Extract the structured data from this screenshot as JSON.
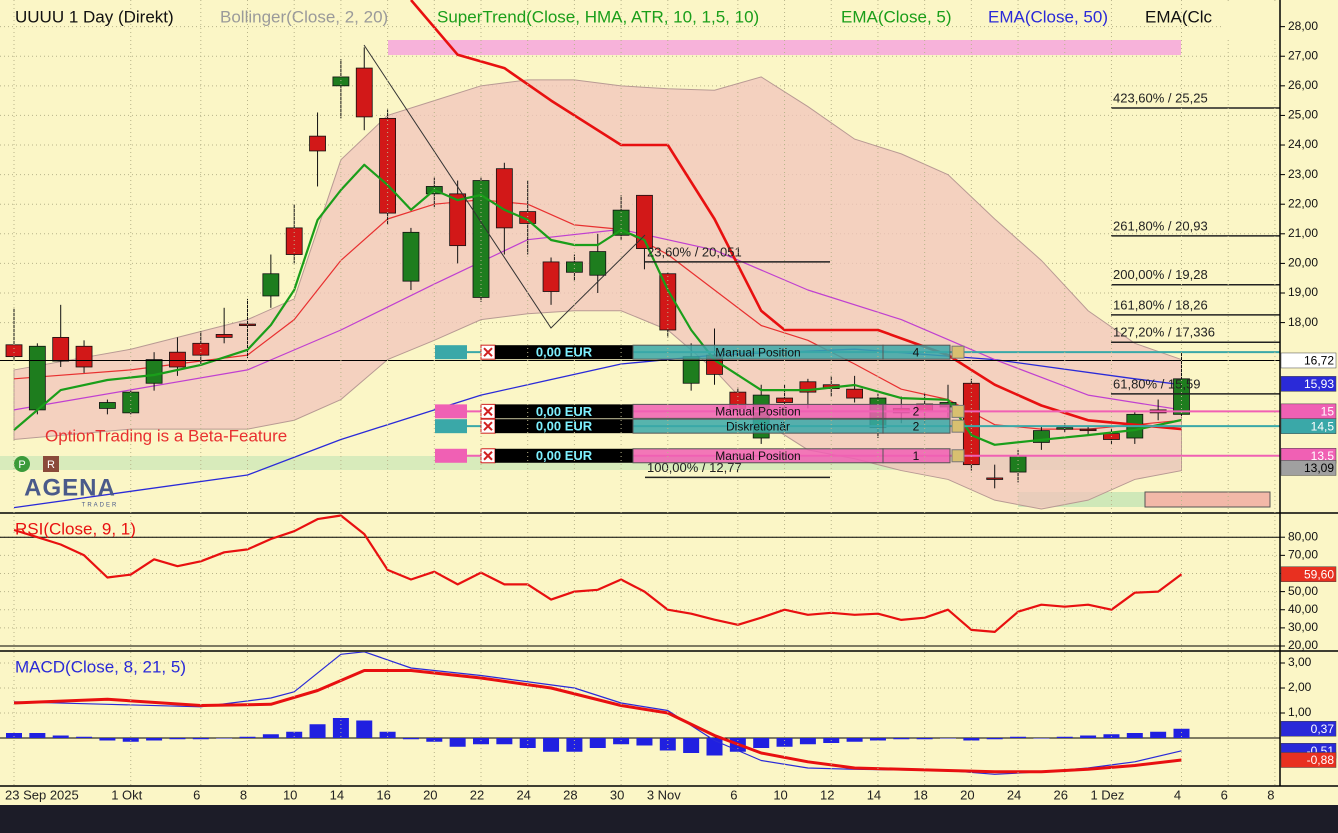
{
  "header": {
    "symbol": "UUUU 1 Day (Direkt)",
    "indicators": [
      {
        "label": "Bollinger(Close, 2, 20)",
        "color": "#9a9a9a"
      },
      {
        "label": "SuperTrend(Close, HMA, ATR, 10, 1,5, 10)",
        "color": "#1a9e1a"
      },
      {
        "label": "EMA(Close, 5)",
        "color": "#1a9e1a"
      },
      {
        "label": "EMA(Close, 50)",
        "color": "#2a2ad8"
      },
      {
        "label": "EMA(Clc",
        "color": "#111111"
      }
    ]
  },
  "beta_notice": "OptionTrading is a Beta-Feature",
  "logo": {
    "name": "AGENA",
    "sub": "TRADER"
  },
  "buttons": [
    "P",
    "R"
  ],
  "x_axis": {
    "labels": [
      "23 Sep 2025",
      null,
      null,
      null,
      null,
      "1 Okt",
      null,
      null,
      "6",
      null,
      "8",
      null,
      "10",
      null,
      "14",
      null,
      "16",
      null,
      "20",
      null,
      "22",
      null,
      "24",
      null,
      "28",
      null,
      "30",
      null,
      "3 Nov",
      null,
      null,
      "6",
      null,
      "10",
      null,
      "12",
      null,
      "14",
      null,
      "18",
      null,
      "20",
      null,
      "24",
      null,
      "26",
      null,
      "1 Dez",
      null,
      null,
      "4",
      null,
      "6",
      null,
      "8"
    ]
  },
  "price": {
    "ylim": [
      11.6,
      28.9
    ],
    "yticks": [
      {
        "value": 18,
        "label": "18,00"
      },
      {
        "value": 19,
        "label": "19,00"
      },
      {
        "value": 20,
        "label": "20,00"
      },
      {
        "value": 21,
        "label": "21,00"
      },
      {
        "value": 22,
        "label": "22,00"
      },
      {
        "value": 23,
        "label": "23,00"
      },
      {
        "value": 24,
        "label": "24,00"
      },
      {
        "value": 25,
        "label": "25,00"
      },
      {
        "value": 26,
        "label": "26,00"
      },
      {
        "value": 27,
        "label": "27,00"
      },
      {
        "value": 28,
        "label": "28,00"
      }
    ],
    "up_color": "#1e7d1e",
    "down_color": "#d21818",
    "candles": [
      {
        "o": 17.25,
        "h": 18.5,
        "l": 16.75,
        "c": 16.85
      },
      {
        "o": 15.05,
        "h": 17.3,
        "l": 14.9,
        "c": 17.2
      },
      {
        "o": 17.5,
        "h": 18.6,
        "l": 16.5,
        "c": 16.7
      },
      {
        "o": 17.2,
        "h": 17.4,
        "l": 16.3,
        "c": 16.5
      },
      {
        "o": 15.1,
        "h": 15.4,
        "l": 14.9,
        "c": 15.3
      },
      {
        "o": 14.95,
        "h": 15.7,
        "l": 14.9,
        "c": 15.65
      },
      {
        "o": 15.95,
        "h": 17.0,
        "l": 15.7,
        "c": 16.75
      },
      {
        "o": 17.0,
        "h": 17.5,
        "l": 16.2,
        "c": 16.5
      },
      {
        "o": 17.3,
        "h": 17.7,
        "l": 16.6,
        "c": 16.9
      },
      {
        "o": 17.6,
        "h": 18.5,
        "l": 17.3,
        "c": 17.5
      },
      {
        "o": 17.95,
        "h": 18.8,
        "l": 16.8,
        "c": 17.9
      },
      {
        "o": 18.9,
        "h": 20.3,
        "l": 18.5,
        "c": 19.65
      },
      {
        "o": 21.2,
        "h": 22.0,
        "l": 20.0,
        "c": 20.3
      },
      {
        "o": 24.3,
        "h": 25.1,
        "l": 22.6,
        "c": 23.8
      },
      {
        "o": 26.0,
        "h": 26.9,
        "l": 24.9,
        "c": 26.3
      },
      {
        "o": 26.6,
        "h": 27.3,
        "l": 24.5,
        "c": 24.95
      },
      {
        "o": 24.9,
        "h": 25.2,
        "l": 21.3,
        "c": 21.7
      },
      {
        "o": 19.4,
        "h": 21.2,
        "l": 19.1,
        "c": 21.05
      },
      {
        "o": 22.35,
        "h": 22.9,
        "l": 21.9,
        "c": 22.6
      },
      {
        "o": 22.35,
        "h": 22.8,
        "l": 20.0,
        "c": 20.6
      },
      {
        "o": 18.85,
        "h": 22.9,
        "l": 18.7,
        "c": 22.8
      },
      {
        "o": 23.2,
        "h": 23.4,
        "l": 20.3,
        "c": 21.2
      },
      {
        "o": 21.75,
        "h": 22.8,
        "l": 20.3,
        "c": 21.35
      },
      {
        "o": 20.05,
        "h": 20.2,
        "l": 18.6,
        "c": 19.05
      },
      {
        "o": 19.7,
        "h": 20.3,
        "l": 19.4,
        "c": 20.05
      },
      {
        "o": 19.6,
        "h": 21.0,
        "l": 19.0,
        "c": 20.4
      },
      {
        "o": 20.95,
        "h": 22.3,
        "l": 20.8,
        "c": 21.8
      },
      {
        "o": 22.3,
        "h": 22.3,
        "l": 19.8,
        "c": 20.5
      },
      {
        "o": 19.65,
        "h": 19.7,
        "l": 17.5,
        "c": 17.75
      },
      {
        "o": 15.95,
        "h": 17.3,
        "l": 15.7,
        "c": 16.85
      },
      {
        "o": 16.9,
        "h": 17.8,
        "l": 15.9,
        "c": 16.25
      },
      {
        "o": 15.65,
        "h": 15.8,
        "l": 14.8,
        "c": 15.1
      },
      {
        "o": 14.1,
        "h": 15.9,
        "l": 13.9,
        "c": 15.55
      },
      {
        "o": 15.45,
        "h": 15.9,
        "l": 15.1,
        "c": 15.3
      },
      {
        "o": 16.0,
        "h": 16.1,
        "l": 15.1,
        "c": 15.65
      },
      {
        "o": 15.9,
        "h": 16.2,
        "l": 15.5,
        "c": 15.77
      },
      {
        "o": 15.75,
        "h": 16.2,
        "l": 15.3,
        "c": 15.45
      },
      {
        "o": 14.45,
        "h": 15.6,
        "l": 14.1,
        "c": 15.45
      },
      {
        "o": 15.1,
        "h": 15.5,
        "l": 14.6,
        "c": 14.95
      },
      {
        "o": 15.25,
        "h": 15.6,
        "l": 14.6,
        "c": 15.0
      },
      {
        "o": 15.15,
        "h": 15.9,
        "l": 14.8,
        "c": 15.3
      },
      {
        "o": 15.95,
        "h": 16.1,
        "l": 13.0,
        "c": 13.2
      },
      {
        "o": 12.75,
        "h": 13.2,
        "l": 12.4,
        "c": 12.7
      },
      {
        "o": 12.95,
        "h": 13.7,
        "l": 12.6,
        "c": 13.5
      },
      {
        "o": 13.95,
        "h": 14.5,
        "l": 13.7,
        "c": 14.35
      },
      {
        "o": 14.45,
        "h": 14.6,
        "l": 14.3,
        "c": 14.45
      },
      {
        "o": 14.4,
        "h": 14.5,
        "l": 14.2,
        "c": 14.35
      },
      {
        "o": 14.25,
        "h": 14.4,
        "l": 13.9,
        "c": 14.05
      },
      {
        "o": 14.1,
        "h": 15.0,
        "l": 13.9,
        "c": 14.9
      },
      {
        "o": 15.05,
        "h": 15.4,
        "l": 14.7,
        "c": 14.95
      },
      {
        "o": 14.9,
        "h": 17.0,
        "l": 14.8,
        "c": 16.1
      }
    ],
    "band": {
      "color": "#f2c4bc",
      "edge": "#b89a94",
      "x": [
        0,
        5,
        10,
        12,
        14,
        16,
        18,
        20,
        22,
        24,
        26,
        28,
        30,
        32,
        34,
        36,
        38,
        40,
        42,
        44,
        46,
        48,
        50
      ],
      "upper": [
        16.4,
        17.1,
        18.1,
        18.8,
        23.5,
        25.0,
        25.5,
        26.0,
        26.2,
        26.2,
        26.0,
        25.9,
        25.85,
        26.3,
        25.3,
        24.2,
        23.7,
        23.0,
        21.5,
        20.1,
        18.4,
        17.3,
        16.75
      ],
      "lower": [
        14.05,
        14.4,
        14.4,
        14.7,
        15.4,
        16.75,
        17.4,
        18.1,
        18.3,
        18.4,
        18.4,
        17.75,
        16.4,
        14.7,
        13.7,
        13.4,
        13.0,
        12.7,
        12.0,
        11.7,
        12.0,
        12.7,
        13.0
      ]
    },
    "lines": [
      {
        "color": "#2a2ad8",
        "width": 1.3,
        "x": [
          0,
          10,
          14,
          20,
          26,
          30,
          36,
          42,
          48,
          50
        ],
        "values": [
          11.75,
          12.85,
          14.05,
          15.55,
          16.6,
          16.9,
          17.1,
          16.75,
          16.1,
          15.9
        ]
      },
      {
        "color": "#c040d0",
        "width": 1.2,
        "x": [
          0,
          10,
          14,
          18,
          22,
          26,
          30,
          34,
          38,
          42,
          46,
          50
        ],
        "values": [
          15.05,
          16.4,
          17.75,
          19.3,
          20.8,
          21.15,
          20.45,
          19.1,
          18.1,
          16.75,
          15.55,
          15.05
        ]
      },
      {
        "color": "#e83030",
        "width": 1.2,
        "x": [
          0,
          5,
          10,
          12,
          14,
          16,
          18,
          20,
          22,
          24,
          26,
          28,
          30,
          32,
          34,
          36,
          38,
          40,
          42,
          44,
          46,
          50
        ],
        "values": [
          16.1,
          16.4,
          16.9,
          18.1,
          20.1,
          21.5,
          22.0,
          22.15,
          22.0,
          21.3,
          21.15,
          20.3,
          19.1,
          17.9,
          17.4,
          16.6,
          15.75,
          15.4,
          14.55,
          14.4,
          14.4,
          14.7
        ]
      },
      {
        "color": "#1a9e1a",
        "width": 2.2,
        "x": [
          0,
          2,
          4,
          6,
          8,
          10,
          11,
          12,
          13,
          14,
          15,
          16,
          17,
          18,
          19,
          20,
          21,
          22,
          23,
          24,
          25,
          26,
          27,
          28,
          29,
          30,
          32,
          34,
          36,
          38,
          40,
          41,
          42,
          44,
          46,
          48,
          50
        ],
        "values": [
          14.37,
          15.72,
          16.06,
          16.23,
          16.57,
          17.08,
          17.92,
          19.1,
          21.47,
          22.48,
          23.33,
          22.65,
          21.81,
          22.48,
          22.14,
          22.31,
          21.81,
          21.47,
          20.79,
          20.62,
          20.62,
          21.13,
          20.79,
          19.1,
          17.75,
          16.74,
          15.72,
          15.72,
          15.89,
          15.45,
          15.39,
          14.2,
          13.87,
          14.04,
          14.2,
          14.37,
          14.71
        ]
      },
      {
        "color": "#e81010",
        "width": 2.6,
        "x": [
          17,
          19,
          21,
          23,
          26,
          28,
          30,
          32,
          33,
          37,
          40,
          42,
          44,
          46,
          50
        ],
        "values": [
          28.9,
          27.05,
          26.6,
          25.5,
          24.0,
          24.0,
          21.5,
          18.4,
          17.75,
          17.75,
          16.9,
          15.9,
          15.2,
          14.7,
          14.4
        ]
      }
    ],
    "fib_left": [
      {
        "label": "23,60% / 20,051",
        "value": 20.051
      },
      {
        "label": "100,00% / 12,77",
        "value": 12.77
      }
    ],
    "fib_right": [
      {
        "label": "423,60% / 25,25",
        "value": 25.25
      },
      {
        "label": "261,80% / 20,93",
        "value": 20.93
      },
      {
        "label": "200,00% / 19,28",
        "value": 19.28
      },
      {
        "label": "161,80% / 18,26",
        "value": 18.26
      },
      {
        "label": "127,20% / 17,336",
        "value": 17.336
      },
      {
        "label": "61,80% / 15,59",
        "value": 15.59
      }
    ],
    "orders": [
      {
        "price": 17,
        "pnl": "0,00 EUR",
        "type": "Manual Position",
        "qty": 4,
        "color": "#3aa8a8"
      },
      {
        "price": 15,
        "pnl": "0,00 EUR",
        "type": "Manual Position",
        "qty": 2,
        "color": "#f060b4"
      },
      {
        "price": 14.5,
        "pnl": "0,00 EUR",
        "type": "Diskretionär",
        "qty": 2,
        "color": "#3aa8a8"
      },
      {
        "price": 13.5,
        "pnl": "0,00 EUR",
        "type": "Manual Position",
        "qty": 1,
        "color": "#f060b4"
      }
    ],
    "tags": [
      {
        "value": 16.72,
        "label": "16,72",
        "color": "#ffffff",
        "text_color": "#000000"
      },
      {
        "value": 15.93,
        "label": "15,93",
        "color": "#2a2ad8",
        "text_color": "#ffffff"
      },
      {
        "value": 15,
        "color": "#f060b4",
        "text_color": "#ffffff"
      },
      {
        "value": 14.5,
        "label": "14,5",
        "color": "#3aa8a8",
        "text_color": "#ffffff"
      },
      {
        "value": 13.5,
        "label": "13,5",
        "color": "#f060b4",
        "text_color": "#ffffff"
      },
      {
        "value": 13.09,
        "label": "13,09",
        "color": "#a0a0a0",
        "text_color": "#000000"
      }
    ]
  },
  "rsi": {
    "title": "RSI(Close, 9, 1)",
    "color": "#e81010",
    "ylim": [
      17.8,
      92.8
    ],
    "yticks": [
      {
        "value": 80,
        "label": "80,00"
      },
      {
        "value": 70,
        "label": "70,00"
      },
      {
        "value": 60,
        "label": "60,00"
      },
      {
        "value": 50,
        "label": "50,00"
      },
      {
        "value": 40,
        "label": "40,00"
      },
      {
        "value": 30,
        "label": "30,00"
      },
      {
        "value": 20,
        "label": "20,00"
      }
    ],
    "values": [
      84,
      80,
      76,
      70,
      57.8,
      59.4,
      67.8,
      64,
      66.7,
      71.7,
      73.3,
      79,
      83.3,
      90,
      92,
      81.7,
      62,
      56.7,
      61,
      54,
      60.5,
      54,
      54,
      45.6,
      50,
      51,
      56.7,
      50,
      40,
      37.8,
      34.5,
      31.7,
      35.6,
      40,
      37.2,
      38.3,
      37.2,
      37.8,
      34.4,
      35.6,
      40,
      28.9,
      27.8,
      38.9,
      42.8,
      41.7,
      42.8,
      40,
      49.4,
      50,
      59.6
    ],
    "tag": {
      "value": 59.6,
      "label": "59,60",
      "color": "#e83020",
      "text_color": "#ffffff"
    }
  },
  "macd": {
    "title": "MACD(Close, 8, 21, 5)",
    "ylim": [
      -1.88,
      3.44
    ],
    "yticks": [
      {
        "value": 1,
        "label": "1,00"
      },
      {
        "value": 2,
        "label": "2,00"
      },
      {
        "value": 3,
        "label": "3,00"
      }
    ],
    "hist_color": "#2020e0",
    "histogram": [
      0.2,
      0.2,
      0.1,
      0.05,
      -0.1,
      -0.15,
      -0.1,
      -0.05,
      -0.05,
      0,
      0.05,
      0.15,
      0.25,
      0.55,
      0.8,
      0.7,
      0.25,
      -0.05,
      -0.15,
      -0.35,
      -0.25,
      -0.25,
      -0.4,
      -0.55,
      -0.55,
      -0.4,
      -0.25,
      -0.3,
      -0.5,
      -0.6,
      -0.7,
      -0.55,
      -0.4,
      -0.35,
      -0.25,
      -0.2,
      -0.15,
      -0.1,
      -0.05,
      -0.05,
      0,
      -0.1,
      -0.05,
      0.05,
      0,
      0.05,
      0.1,
      0.15,
      0.2,
      0.25,
      0.37
    ],
    "lines": [
      {
        "color": "#2a2ad8",
        "width": 1.2,
        "x": [
          0,
          4,
          8,
          11,
          12,
          14,
          15,
          17,
          20,
          24,
          26,
          28,
          30,
          32,
          34,
          36,
          40,
          42,
          44,
          46,
          48,
          50
        ],
        "values": [
          1.45,
          1.35,
          1.25,
          1.6,
          1.85,
          3.35,
          3.45,
          2.8,
          2.5,
          2.0,
          1.4,
          1.1,
          -0.1,
          -0.9,
          -1.2,
          -1.25,
          -1.3,
          -1.45,
          -1.35,
          -1.2,
          -0.95,
          -0.51
        ]
      },
      {
        "color": "#e81010",
        "width": 3,
        "x": [
          0,
          4,
          8,
          11,
          13,
          15,
          17,
          20,
          23,
          26,
          28,
          30,
          32,
          34,
          36,
          40,
          42,
          44,
          46,
          48,
          50
        ],
        "values": [
          1.4,
          1.55,
          1.3,
          1.35,
          1.9,
          2.7,
          2.7,
          2.4,
          2.0,
          1.3,
          1.0,
          0.1,
          -0.6,
          -0.95,
          -1.2,
          -1.3,
          -1.35,
          -1.35,
          -1.25,
          -1.1,
          -0.88
        ]
      }
    ],
    "tags": [
      {
        "value": 0.37,
        "label": "0,37",
        "color": "#2a2ad8",
        "text_color": "#ffffff"
      },
      {
        "value": -0.51,
        "label": "-0,51",
        "color": "#2a2ad8",
        "text_color": "#ffffff"
      },
      {
        "value": -0.88,
        "label": "-0,88",
        "color": "#e83020",
        "text_color": "#ffffff"
      }
    ]
  }
}
